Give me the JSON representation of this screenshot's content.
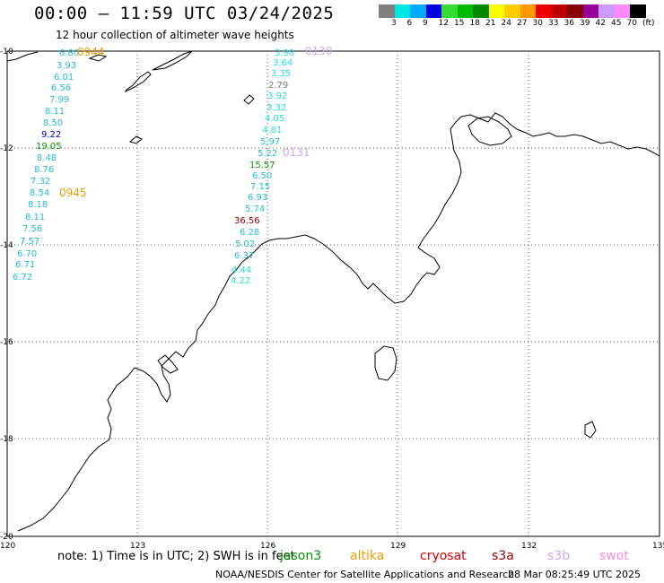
{
  "header": {
    "title": "00:00 – 11:59 UTC 03/24/2025",
    "subtitle": "12 hour collection of altimeter wave heights"
  },
  "legend": {
    "unit": "(ft)",
    "colors": [
      "#808080",
      "#00e5e5",
      "#00aaff",
      "#0000dd",
      "#33dd33",
      "#00bb00",
      "#008800",
      "#ffff00",
      "#ffcc00",
      "#ff9900",
      "#ee0000",
      "#bb0000",
      "#880000",
      "#990099",
      "#cc99ff",
      "#ff88ff",
      "#000000"
    ],
    "labels": [
      "3",
      "6",
      "9",
      "12",
      "15",
      "18",
      "21",
      "24",
      "27",
      "30",
      "33",
      "36",
      "39",
      "42",
      "45",
      "70"
    ]
  },
  "axes": {
    "lat_labels": [
      "-10",
      "-12",
      "-14",
      "-16",
      "-18",
      "-20"
    ],
    "lon_labels": [
      "120",
      "123",
      "126",
      "129",
      "132",
      "135"
    ]
  },
  "passes": [
    {
      "time": "0944",
      "color": "#ee9900"
    },
    {
      "time": "0945",
      "color": "#ee9900"
    },
    {
      "time": "0130",
      "color": "#c9a8f0"
    },
    {
      "time": "0131",
      "color": "#c9a8f0"
    }
  ],
  "track_west": [
    {
      "v": "6.80",
      "c": "#22bbdd"
    },
    {
      "v": "3.93",
      "c": "#22bbdd"
    },
    {
      "v": "6.01",
      "c": "#22bbdd"
    },
    {
      "v": "6.56",
      "c": "#22bbdd"
    },
    {
      "v": "7.99",
      "c": "#22bbdd"
    },
    {
      "v": "8.11",
      "c": "#22bbdd"
    },
    {
      "v": "8.50",
      "c": "#22bbdd"
    },
    {
      "v": "9.22",
      "c": "#0000aa"
    },
    {
      "v": "19.05",
      "c": "#009900"
    },
    {
      "v": "8.48",
      "c": "#22bbdd"
    },
    {
      "v": "8.76",
      "c": "#22bbdd"
    },
    {
      "v": "7.32",
      "c": "#22bbdd"
    },
    {
      "v": "8.54",
      "c": "#22bbdd"
    },
    {
      "v": "8.18",
      "c": "#22bbdd"
    },
    {
      "v": "8.11",
      "c": "#22bbdd"
    },
    {
      "v": "7.56",
      "c": "#22bbdd"
    },
    {
      "v": "7.57",
      "c": "#22bbdd"
    },
    {
      "v": "6.70",
      "c": "#22bbdd"
    },
    {
      "v": "6.71",
      "c": "#22bbdd"
    },
    {
      "v": "6.72",
      "c": "#22bbdd"
    }
  ],
  "track_east": [
    {
      "v": "3.98",
      "c": "#22dddd"
    },
    {
      "v": "3.64",
      "c": "#22dddd"
    },
    {
      "v": "3.35",
      "c": "#22dddd"
    },
    {
      "v": "2.79",
      "c": "#777777"
    },
    {
      "v": "3.92",
      "c": "#22dddd"
    },
    {
      "v": "3.32",
      "c": "#22dddd"
    },
    {
      "v": "4.05",
      "c": "#22dddd"
    },
    {
      "v": "4.81",
      "c": "#22dddd"
    },
    {
      "v": "5.97",
      "c": "#22bbdd"
    },
    {
      "v": "5.22",
      "c": "#22bbdd"
    },
    {
      "v": "15.57",
      "c": "#009900"
    },
    {
      "v": "6.50",
      "c": "#22bbdd"
    },
    {
      "v": "7.15",
      "c": "#22bbdd"
    },
    {
      "v": "6.93",
      "c": "#22bbdd"
    },
    {
      "v": "5.74",
      "c": "#22bbdd"
    },
    {
      "v": "36.56",
      "c": "#880000"
    },
    {
      "v": "6.28",
      "c": "#22bbdd"
    },
    {
      "v": "5.02",
      "c": "#22bbdd"
    },
    {
      "v": "6.37",
      "c": "#22bbdd"
    },
    {
      "v": "4.44",
      "c": "#22dddd"
    },
    {
      "v": "4.22",
      "c": "#22dddd"
    }
  ],
  "footer": {
    "note": "note: 1) Time is in UTC; 2) SWH is in feet",
    "satellites": [
      {
        "name": "jason3",
        "color": "#009900"
      },
      {
        "name": "altika",
        "color": "#ee9900"
      },
      {
        "name": "cryosat",
        "color": "#dd0000"
      },
      {
        "name": "s3a",
        "color": "#990000"
      },
      {
        "name": "s3b",
        "color": "#c9a8f0"
      },
      {
        "name": "swot",
        "color": "#ff88dd"
      }
    ],
    "credit": "NOAA/NESDIS Center for Satellite Applications and Research",
    "timestamp": "28 Mar 08:25:49 UTC 2025"
  }
}
